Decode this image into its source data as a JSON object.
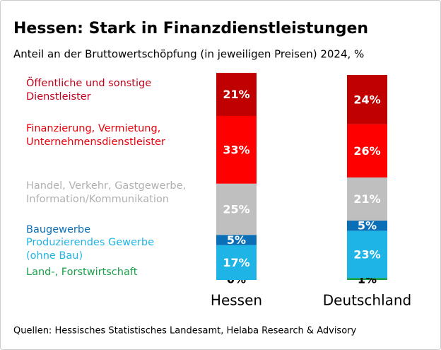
{
  "chart_data": {
    "type": "bar",
    "stacked": true,
    "title": "Hessen: Stark in Finanzdienstleistungen",
    "subtitle": "Anteil an der Bruttowertschöpfung (in jeweiligen Preisen) 2024, %",
    "source": "Quellen: Hessisches Statistisches Landesamt, Helaba Research & Advisory",
    "categories": [
      "Hessen",
      "Deutschland"
    ],
    "series": [
      {
        "name": "Land-, Forstwirtschaft",
        "color": "#19a14a",
        "values": [
          0,
          1
        ],
        "value_labels": [
          "0%",
          "1%"
        ]
      },
      {
        "name": "Produzierendes Gewerbe\n(ohne Bau)",
        "color": "#1fb4e6",
        "values": [
          17,
          23
        ],
        "value_labels": [
          "17%",
          "23%"
        ]
      },
      {
        "name": "Baugewerbe",
        "color": "#0b6fb8",
        "values": [
          5,
          5
        ],
        "value_labels": [
          "5%",
          "5%"
        ]
      },
      {
        "name": "Handel, Verkehr, Gastgewerbe,\nInformation/Kommunikation",
        "color": "#bfbfbf",
        "values": [
          25,
          21
        ],
        "value_labels": [
          "25%",
          "21%"
        ]
      },
      {
        "name": "Finanzierung, Vermietung,\nUnternehmensdienstleister",
        "color": "#ff0000",
        "values": [
          33,
          26
        ],
        "value_labels": [
          "33%",
          "26%"
        ]
      },
      {
        "name": "Öffentliche und sonstige\nDienstleister",
        "color": "#c00000",
        "values": [
          21,
          24
        ],
        "value_labels": [
          "21%",
          "24%"
        ]
      }
    ]
  }
}
